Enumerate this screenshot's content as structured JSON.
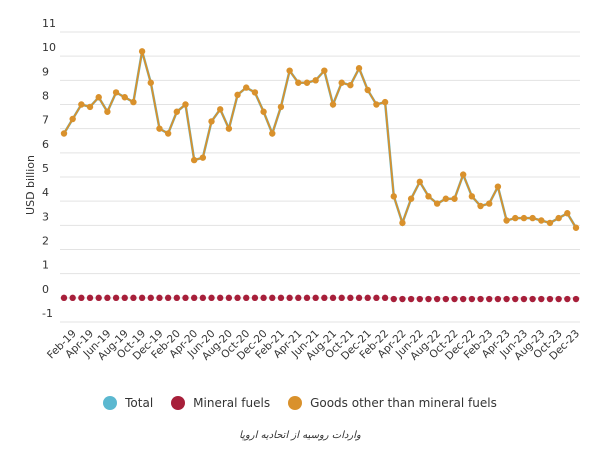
{
  "chart_data": {
    "type": "line",
    "ylabel": "USD billion",
    "ylim": [
      -1,
      11
    ],
    "y_ticks": [
      11,
      10,
      9,
      8,
      7,
      6,
      5,
      4,
      3,
      2,
      1,
      0,
      -1
    ],
    "x_tick_labels": [
      "Feb-19",
      "Apr-19",
      "Jun-19",
      "Aug-19",
      "Oct-19",
      "Dec-19",
      "Feb-20",
      "Apr-20",
      "Jun-20",
      "Aug-20",
      "Oct-20",
      "Dec-20",
      "Feb-21",
      "Apr-21",
      "Jun-21",
      "Aug-21",
      "Oct-21",
      "Dec-21",
      "Feb-22",
      "Apr-22",
      "Jun-22",
      "Aug-22",
      "Oct-22",
      "Dec-22",
      "Feb-23",
      "Apr-23",
      "Jun-23",
      "Aug-23",
      "Oct-23",
      "Dec-23"
    ],
    "x": [
      "Jan-19",
      "Feb-19",
      "Mar-19",
      "Apr-19",
      "May-19",
      "Jun-19",
      "Jul-19",
      "Aug-19",
      "Sep-19",
      "Oct-19",
      "Nov-19",
      "Dec-19",
      "Jan-20",
      "Feb-20",
      "Mar-20",
      "Apr-20",
      "May-20",
      "Jun-20",
      "Jul-20",
      "Aug-20",
      "Sep-20",
      "Oct-20",
      "Nov-20",
      "Dec-20",
      "Jan-21",
      "Feb-21",
      "Mar-21",
      "Apr-21",
      "May-21",
      "Jun-21",
      "Jul-21",
      "Aug-21",
      "Sep-21",
      "Oct-21",
      "Nov-21",
      "Dec-21",
      "Jan-22",
      "Feb-22",
      "Mar-22",
      "Apr-22",
      "May-22",
      "Jun-22",
      "Jul-22",
      "Aug-22",
      "Sep-22",
      "Oct-22",
      "Nov-22",
      "Dec-22",
      "Jan-23",
      "Feb-23",
      "Mar-23",
      "Apr-23",
      "May-23",
      "Jun-23",
      "Jul-23",
      "Aug-23",
      "Sep-23",
      "Oct-23",
      "Nov-23",
      "Dec-23"
    ],
    "series": [
      {
        "name": "Total",
        "color": "#5bb8d0",
        "values": [
          6.8,
          7.4,
          8.0,
          7.9,
          8.3,
          7.7,
          8.5,
          8.3,
          8.1,
          10.2,
          8.9,
          7.0,
          6.8,
          7.7,
          8.0,
          5.7,
          5.8,
          7.3,
          7.8,
          7.0,
          8.4,
          8.7,
          8.5,
          7.7,
          6.8,
          7.9,
          9.4,
          8.9,
          8.9,
          9.0,
          9.4,
          8.0,
          8.9,
          8.8,
          9.5,
          8.6,
          8.0,
          8.1,
          4.2,
          3.1,
          4.1,
          4.8,
          4.2,
          3.9,
          4.1,
          4.1,
          5.1,
          4.2,
          3.8,
          3.9,
          4.6,
          3.2,
          3.3,
          3.3,
          3.3,
          3.2,
          3.1,
          3.3,
          3.5,
          2.9
        ]
      },
      {
        "name": "Mineral fuels",
        "color": "#a71f3a",
        "values": [
          0,
          0,
          0,
          0,
          0,
          0,
          0,
          0,
          0,
          0,
          0,
          0,
          0,
          0,
          0,
          0,
          0,
          0,
          0,
          0,
          0,
          0,
          0,
          0,
          0,
          0,
          0,
          0,
          0,
          0,
          0,
          0,
          0,
          0,
          0,
          0,
          0,
          0,
          -0.05,
          -0.05,
          -0.05,
          -0.05,
          -0.05,
          -0.05,
          -0.05,
          -0.05,
          -0.05,
          -0.05,
          -0.05,
          -0.05,
          -0.05,
          -0.05,
          -0.05,
          -0.05,
          -0.05,
          -0.05,
          -0.05,
          -0.05,
          -0.05,
          -0.05
        ]
      },
      {
        "name": "Goods other than mineral fuels",
        "color": "#d9912c",
        "values": [
          6.8,
          7.4,
          8.0,
          7.9,
          8.3,
          7.7,
          8.5,
          8.3,
          8.1,
          10.2,
          8.9,
          7.0,
          6.8,
          7.7,
          8.0,
          5.7,
          5.8,
          7.3,
          7.8,
          7.0,
          8.4,
          8.7,
          8.5,
          7.7,
          6.8,
          7.9,
          9.4,
          8.9,
          8.9,
          9.0,
          9.4,
          8.0,
          8.9,
          8.8,
          9.5,
          8.6,
          8.0,
          8.1,
          4.2,
          3.1,
          4.1,
          4.8,
          4.2,
          3.9,
          4.1,
          4.1,
          5.1,
          4.2,
          3.8,
          3.9,
          4.6,
          3.2,
          3.3,
          3.3,
          3.3,
          3.2,
          3.1,
          3.3,
          3.5,
          2.9
        ]
      }
    ],
    "grid": true,
    "legend_position": "bottom"
  },
  "caption": "واردات روسیه از اتحادیه اروپا"
}
